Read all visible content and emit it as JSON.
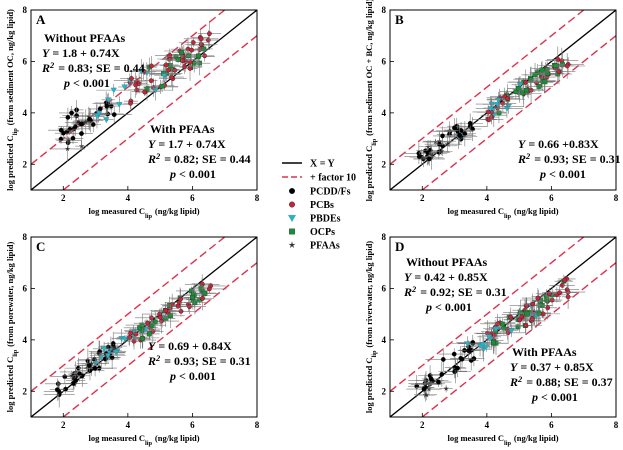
{
  "chart_data": [
    {
      "type": "scatter",
      "panel_label": "A",
      "xlabel": "log measured C_lip (ng/kg lipid)",
      "ylabel": "log predicted C_lip (from sediment OC, ng/kg lipid)",
      "xlim": [
        1,
        8
      ],
      "ylim": [
        1,
        8
      ],
      "xticks": [
        2,
        4,
        6,
        8
      ],
      "yticks": [
        2,
        4,
        6,
        8
      ],
      "annotations": [
        {
          "lines": [
            "Without PFAAs",
            "Y = 1.8 + 0.74X",
            "R2 = 0.83; SE = 0.44",
            "p < 0.001"
          ]
        },
        {
          "lines": [
            "With PFAAs",
            "Y = 1.7 + 0.74X",
            "R2 = 0.82; SE = 0.44",
            "p < 0.001"
          ]
        }
      ]
    },
    {
      "type": "scatter",
      "panel_label": "B",
      "xlabel": "log measured C_lip (ng/kg lipid)",
      "ylabel": "log predicted C_lip (from sediment OC + BC, ng/kg lipid)",
      "xlim": [
        1,
        8
      ],
      "ylim": [
        1,
        8
      ],
      "xticks": [
        2,
        4,
        6,
        8
      ],
      "yticks": [
        2,
        4,
        6,
        8
      ],
      "annotations": [
        {
          "lines": [
            "Y = 0.66 +0.83X",
            "R2 = 0.93; SE = 0.31",
            "p < 0.001"
          ]
        }
      ]
    },
    {
      "type": "scatter",
      "panel_label": "C",
      "xlabel": "log measured C_lip (ng/kg lipid)",
      "ylabel": "log predicted C_lip (from porewater, ng/kg lipid)",
      "xlim": [
        1,
        8
      ],
      "ylim": [
        1,
        8
      ],
      "xticks": [
        2,
        4,
        6,
        8
      ],
      "yticks": [
        2,
        4,
        6,
        8
      ],
      "annotations": [
        {
          "lines": [
            "Y = 0.69 + 0.84X",
            "R2 = 0.93; SE = 0.31",
            "p < 0.001"
          ]
        }
      ]
    },
    {
      "type": "scatter",
      "panel_label": "D",
      "xlabel": "log measured C_lip (ng/kg lipid)",
      "ylabel": "log predicted C_lip (from riverwater, ng/kg lipid)",
      "xlim": [
        1,
        8
      ],
      "ylim": [
        1,
        8
      ],
      "xticks": [
        2,
        4,
        6,
        8
      ],
      "yticks": [
        2,
        4,
        6,
        8
      ],
      "annotations": [
        {
          "lines": [
            "Without PFAAs",
            "Y = 0.42 + 0.85X",
            "R2 = 0.92; SE = 0.31",
            "p < 0.001"
          ]
        },
        {
          "lines": [
            "With PFAAs",
            "Y = 0.37 + 0.85X",
            "R2 = 0.88; SE = 0.37",
            "p < 0.001"
          ]
        }
      ]
    }
  ],
  "legend": {
    "lines": [
      {
        "label": "X = Y",
        "color": "#000000",
        "style": "solid"
      },
      {
        "label": "+ factor 10",
        "color": "#e0304a",
        "style": "dashed"
      }
    ],
    "markers": [
      {
        "label": "PCDD/Fs",
        "color": "#000000",
        "shape": "circle"
      },
      {
        "label": "PCBs",
        "color": "#c0283a",
        "shape": "circle"
      },
      {
        "label": "PBDEs",
        "color": "#28b4c8",
        "shape": "triangle-down"
      },
      {
        "label": "OCPs",
        "color": "#1f8a3a",
        "shape": "square"
      },
      {
        "label": "PFAAs",
        "color": "#333333",
        "shape": "star"
      }
    ]
  }
}
